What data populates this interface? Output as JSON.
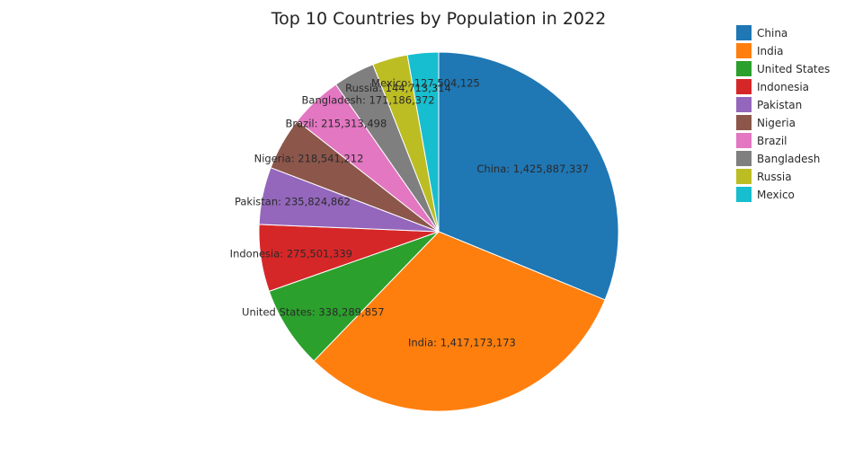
{
  "chart_data": {
    "type": "pie",
    "title": "Top 10 Countries by Population in 2022",
    "legend_position": "top-right",
    "slices": [
      {
        "label": "China",
        "value": 1425887337,
        "text": "China: 1,425,887,337",
        "color": "#1f77b4"
      },
      {
        "label": "India",
        "value": 1417173173,
        "text": "India: 1,417,173,173",
        "color": "#ff7f0e"
      },
      {
        "label": "United States",
        "value": 338289857,
        "text": "United States: 338,289,857",
        "color": "#2ca02c"
      },
      {
        "label": "Indonesia",
        "value": 275501339,
        "text": "Indonesia: 275,501,339",
        "color": "#d62728"
      },
      {
        "label": "Pakistan",
        "value": 235824862,
        "text": "Pakistan: 235,824,862",
        "color": "#9467bd"
      },
      {
        "label": "Nigeria",
        "value": 218541212,
        "text": "Nigeria: 218,541,212",
        "color": "#8c564b"
      },
      {
        "label": "Brazil",
        "value": 215313498,
        "text": "Brazil: 215,313,498",
        "color": "#e377c2"
      },
      {
        "label": "Bangladesh",
        "value": 171186372,
        "text": "Bangladesh: 171,186,372",
        "color": "#7f7f7f"
      },
      {
        "label": "Russia",
        "value": 144713314,
        "text": "Russia: 144,713,314",
        "color": "#bcbd22"
      },
      {
        "label": "Mexico",
        "value": 127504125,
        "text": "Mexico: 127,504,125",
        "color": "#17becf"
      }
    ]
  }
}
